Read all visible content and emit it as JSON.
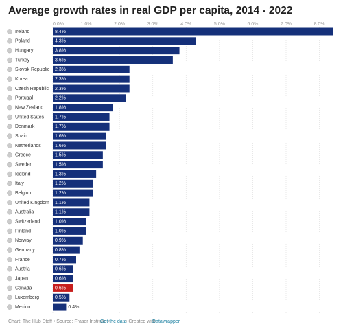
{
  "chart_data": {
    "type": "hbar",
    "title": "Average growth rates in real GDP per capita, 2014 - 2022",
    "categories": [
      "Ireland",
      "Poland",
      "Hungary",
      "Turkey",
      "Slovak Republic",
      "Korea",
      "Czech Republic",
      "Portugal",
      "New Zealand",
      "United States",
      "Denmark",
      "Spain",
      "Netherlands",
      "Greece",
      "Sweden",
      "Iceland",
      "Italy",
      "Belgium",
      "United Kingdom",
      "Australia",
      "Switzerland",
      "Finland",
      "Norway",
      "Germany",
      "France",
      "Austria",
      "Japan",
      "Canada",
      "Luxemberg",
      "Mexico"
    ],
    "values": [
      8.4,
      4.3,
      3.8,
      3.6,
      2.3,
      2.3,
      2.3,
      2.2,
      1.8,
      1.7,
      1.7,
      1.6,
      1.6,
      1.5,
      1.5,
      1.3,
      1.2,
      1.2,
      1.1,
      1.1,
      1.0,
      1.0,
      0.9,
      0.8,
      0.7,
      0.6,
      0.6,
      0.6,
      0.5,
      0.4
    ],
    "value_labels": [
      "8.4%",
      "4.3%",
      "3.8%",
      "3.6%",
      "2.3%",
      "2.3%",
      "2.3%",
      "2.2%",
      "1.8%",
      "1.7%",
      "1.7%",
      "1.6%",
      "1.6%",
      "1.5%",
      "1.5%",
      "1.3%",
      "1.2%",
      "1.2%",
      "1.1%",
      "1.1%",
      "1.0%",
      "1.0%",
      "0.9%",
      "0.8%",
      "0.7%",
      "0.6%",
      "0.6%",
      "0.6%",
      "0.5%",
      "0.4%"
    ],
    "colors": [
      "#15307a",
      "#15307a",
      "#15307a",
      "#15307a",
      "#15307a",
      "#15307a",
      "#15307a",
      "#15307a",
      "#15307a",
      "#15307a",
      "#15307a",
      "#15307a",
      "#15307a",
      "#15307a",
      "#15307a",
      "#15307a",
      "#15307a",
      "#15307a",
      "#15307a",
      "#15307a",
      "#15307a",
      "#15307a",
      "#15307a",
      "#15307a",
      "#15307a",
      "#15307a",
      "#15307a",
      "#c71e1d",
      "#15307a",
      "#15307a"
    ],
    "xlim": [
      0,
      8.4
    ],
    "xticks": [
      {
        "value": 0,
        "label": "0.0%"
      },
      {
        "value": 1,
        "label": "1.0%"
      },
      {
        "value": 2,
        "label": "2.0%"
      },
      {
        "value": 3,
        "label": "3.0%"
      },
      {
        "value": 4,
        "label": "4.0%"
      },
      {
        "value": 5,
        "label": "5.0%"
      },
      {
        "value": 6,
        "label": "6.0%"
      },
      {
        "value": 7,
        "label": "7.0%"
      },
      {
        "value": 8,
        "label": "8.0%"
      }
    ],
    "grid": true,
    "footer": {
      "credit": "Chart: The Hub Staff • Source: Fraser Institute •",
      "link": "Get the data",
      "created": "• Created with",
      "tool": "Datawrapper"
    }
  }
}
